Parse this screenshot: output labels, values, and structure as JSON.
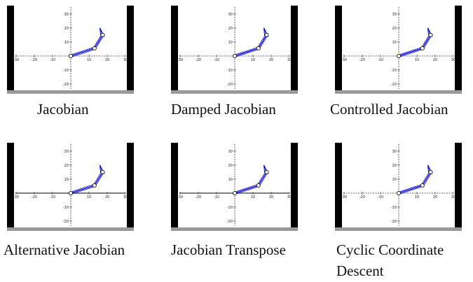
{
  "axis": {
    "x_ticks": [
      -30,
      -20,
      -10,
      10,
      20,
      30
    ],
    "y_ticks": [
      30,
      20,
      10,
      -10,
      -20
    ],
    "x_tick_labels": [
      "-30",
      "-20",
      "-10",
      "10",
      "20",
      "30"
    ],
    "y_tick_labels": [
      "30",
      "20",
      "10",
      "-10",
      "-20"
    ],
    "xlim": [
      -30,
      30
    ],
    "ylim": [
      -22,
      32
    ]
  },
  "arm": {
    "base": [
      0,
      0
    ],
    "elbow": [
      13,
      5.5
    ],
    "wrist": [
      17.5,
      15
    ],
    "tip": [
      16,
      20
    ]
  },
  "colors": {
    "arm": "#0000cc",
    "wall": "#000000",
    "floor": "#999999",
    "axis": "#333333"
  },
  "panels": [
    {
      "caption": "Jacobian",
      "solid_x_axis": false
    },
    {
      "caption": "Damped Jacobian",
      "solid_x_axis": false
    },
    {
      "caption": "Controlled Jacobian",
      "solid_x_axis": false
    },
    {
      "caption": "Alternative Jacobian",
      "solid_x_axis": true
    },
    {
      "caption": "Jacobian Transpose",
      "solid_x_axis": true
    },
    {
      "caption": "Cyclic Coordinate\nDescent",
      "solid_x_axis": false
    }
  ]
}
